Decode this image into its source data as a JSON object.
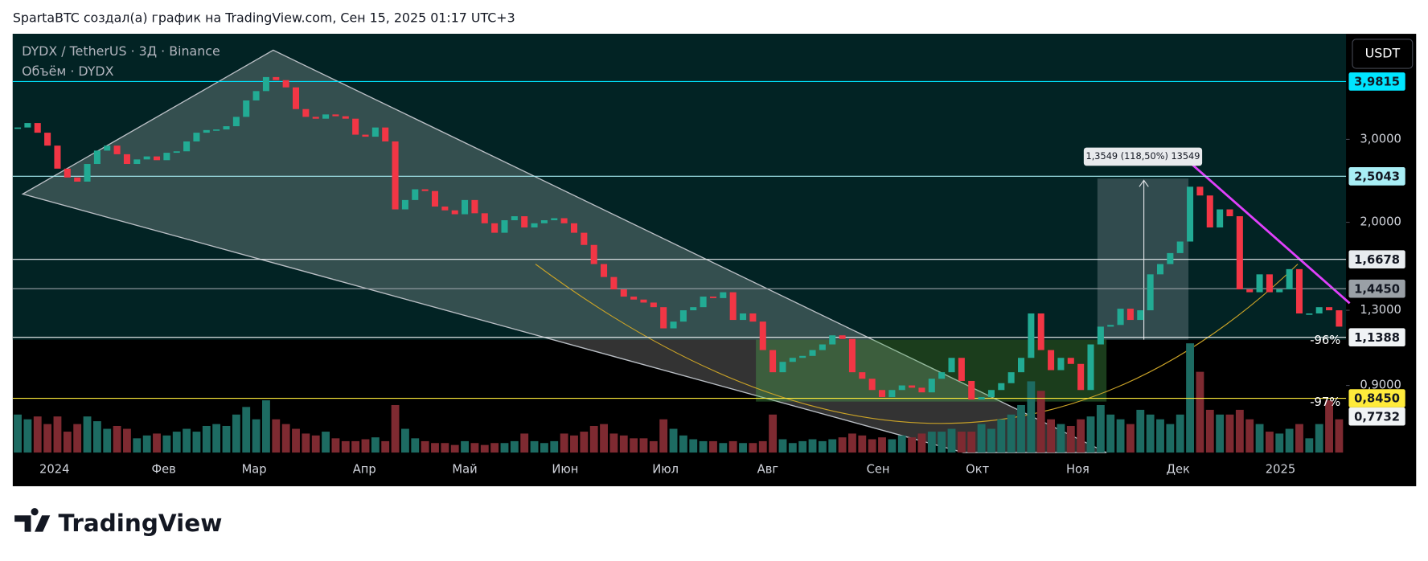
{
  "header": "SpartaBTC создал(а) график на TradingView.com, Сен 15, 2025 01:17 UTC+3",
  "footer": {
    "brand": "TradingView"
  },
  "chart_data": {
    "type": "candlestick",
    "currency": "USDT",
    "log_scale": true,
    "up_color": "#22ab94",
    "down_color": "#f23645",
    "volume_up_color": "#1d6b62",
    "volume_down_color": "#7e2a31",
    "series": [
      {
        "name": "DYDX / TetherUS · 3Д · Binance",
        "values": [
          3.18,
          3.25,
          3.1,
          2.91,
          2.6,
          2.49,
          2.44,
          2.66,
          2.84,
          2.91,
          2.79,
          2.66,
          2.72,
          2.76,
          2.71,
          2.81,
          2.83,
          2.97,
          3.1,
          3.14,
          3.15,
          3.2,
          3.35,
          3.63,
          3.8,
          4.07,
          4.01,
          3.87,
          3.48,
          3.35,
          3.32,
          3.39,
          3.36,
          3.32,
          3.07,
          3.04,
          3.18,
          2.97,
          2.13,
          2.23,
          2.35,
          2.33,
          2.16,
          2.12,
          2.08,
          2.23,
          2.09,
          1.99,
          1.9,
          2.02,
          2.06,
          1.95,
          1.99,
          2.02,
          2.04,
          1.99,
          1.9,
          1.79,
          1.63,
          1.53,
          1.44,
          1.39,
          1.37,
          1.35,
          1.32,
          1.19,
          1.23,
          1.3,
          1.32,
          1.39,
          1.38,
          1.42,
          1.24,
          1.28,
          1.23,
          1.07,
          0.96,
          1.01,
          1.03,
          1.04,
          1.07,
          1.1,
          1.15,
          1.13,
          0.96,
          0.93,
          0.88,
          0.85,
          0.88,
          0.9,
          0.89,
          0.87,
          0.93,
          0.96,
          1.03,
          0.92,
          0.84,
          0.85,
          0.88,
          0.91,
          0.96,
          1.03,
          1.28,
          1.07,
          0.97,
          1.03,
          1.0,
          0.88,
          1.1,
          1.2,
          1.21,
          1.31,
          1.24,
          1.3,
          1.55,
          1.63,
          1.72,
          1.82,
          2.38,
          2.28,
          1.95,
          2.13,
          2.06,
          1.44,
          1.42,
          1.55,
          1.42,
          1.44,
          1.59,
          1.28,
          1.28,
          1.32,
          1.3,
          1.2
        ]
      },
      {
        "name": "Объём · DYDX",
        "values": [
          40,
          35,
          38,
          30,
          38,
          22,
          30,
          38,
          33,
          25,
          28,
          25,
          15,
          18,
          20,
          18,
          22,
          25,
          22,
          28,
          30,
          28,
          40,
          48,
          35,
          55,
          35,
          30,
          25,
          20,
          18,
          22,
          15,
          12,
          12,
          14,
          16,
          12,
          50,
          25,
          15,
          12,
          10,
          10,
          8,
          12,
          10,
          8,
          10,
          10,
          12,
          20,
          12,
          10,
          12,
          20,
          18,
          22,
          28,
          30,
          20,
          18,
          15,
          15,
          12,
          35,
          25,
          18,
          14,
          12,
          12,
          10,
          12,
          10,
          10,
          12,
          40,
          14,
          10,
          12,
          14,
          12,
          14,
          16,
          20,
          18,
          14,
          16,
          14,
          18,
          16,
          20,
          22,
          22,
          25,
          22,
          22,
          30,
          25,
          35,
          40,
          50,
          75,
          65,
          35,
          30,
          28,
          35,
          38,
          50,
          40,
          35,
          30,
          45,
          40,
          35,
          30,
          40,
          115,
          85,
          45,
          40,
          40,
          45,
          35,
          30,
          22,
          20,
          25,
          30,
          15,
          30,
          55,
          35
        ]
      }
    ],
    "xlim": [
      -0.5,
      133.7
    ],
    "ylim": [
      0.648,
      5.03
    ],
    "xticks": [
      {
        "value": 3.7,
        "label": "2024"
      },
      {
        "value": 14.7,
        "label": "Фев"
      },
      {
        "value": 23.8,
        "label": "Мар"
      },
      {
        "value": 34.9,
        "label": "Апр"
      },
      {
        "value": 45,
        "label": "Май"
      },
      {
        "value": 55.1,
        "label": "Июн"
      },
      {
        "value": 65.2,
        "label": "Июл"
      },
      {
        "value": 75.5,
        "label": "Авг"
      },
      {
        "value": 86.6,
        "label": "Сен"
      },
      {
        "value": 96.6,
        "label": "Окт"
      },
      {
        "value": 106.7,
        "label": "Ноя"
      },
      {
        "value": 116.8,
        "label": "Дек"
      },
      {
        "value": 127.1,
        "label": "2025"
      }
    ],
    "yticks": [
      {
        "value": 3,
        "label": "3,0000"
      },
      {
        "value": 2,
        "label": "2,0000"
      },
      {
        "value": 1.3,
        "label": "1,3000"
      },
      {
        "value": 0.9,
        "label": "0,9000"
      }
    ],
    "levels": [
      {
        "value": 3.9815,
        "label": "3,9815",
        "color": "#00e5ff"
      },
      {
        "value": 2.5043,
        "label": "2,5043",
        "color": "#a8eef5"
      },
      {
        "value": 1.6678,
        "label": "1,6678",
        "color": "#e8ecef"
      },
      {
        "value": 1.445,
        "label": "1,4450",
        "color": "#9aa0a6"
      },
      {
        "value": 1.1388,
        "label": "1,1388",
        "color": "#f0f3f5"
      },
      {
        "value": 0.845,
        "label": "0,8450",
        "color": "#ffeb3b"
      },
      {
        "value": 0.7732,
        "label": "0,7732",
        "color": "#f0f3f5"
      }
    ],
    "annotations": [
      "1,3549 (118,50%) 13549",
      "-96%",
      "-97%"
    ]
  }
}
